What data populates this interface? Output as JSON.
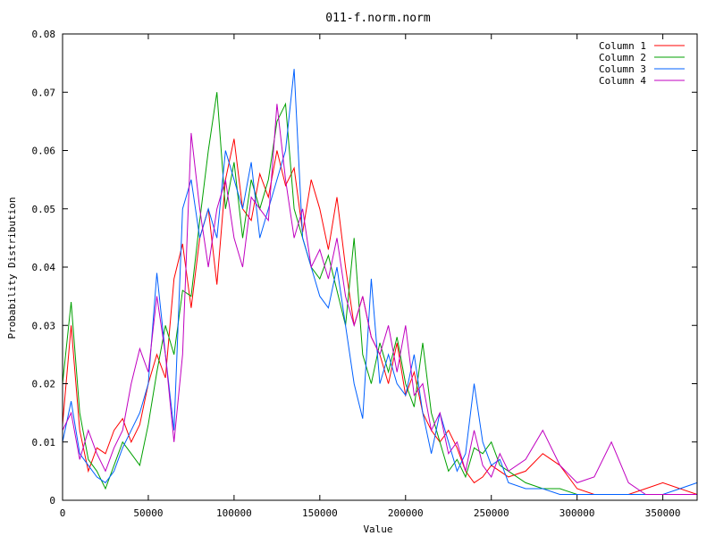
{
  "chart_data": {
    "type": "line",
    "title": "011-f.norm.norm",
    "xlabel": "Value",
    "ylabel": "Probability Distribution",
    "xlim": [
      0,
      370000
    ],
    "ylim": [
      0,
      0.08
    ],
    "xticks": [
      0,
      50000,
      100000,
      150000,
      200000,
      250000,
      300000,
      350000
    ],
    "yticks": [
      0,
      0.01,
      0.02,
      0.03,
      0.04,
      0.05,
      0.06,
      0.07,
      0.08
    ],
    "yticklabels": [
      "0",
      "0.01",
      "0.02",
      "0.03",
      "0.04",
      "0.05",
      "0.06",
      "0.07",
      "0.08"
    ],
    "grid": false,
    "legend_position": "top-right",
    "series": [
      {
        "name": "Column 1",
        "color": "#ff0000",
        "x": [
          0,
          5000,
          10000,
          15000,
          20000,
          25000,
          30000,
          35000,
          40000,
          45000,
          50000,
          55000,
          60000,
          65000,
          70000,
          75000,
          80000,
          85000,
          90000,
          95000,
          100000,
          105000,
          110000,
          115000,
          120000,
          125000,
          130000,
          135000,
          140000,
          145000,
          150000,
          155000,
          160000,
          165000,
          170000,
          175000,
          180000,
          185000,
          190000,
          195000,
          200000,
          205000,
          210000,
          215000,
          220000,
          225000,
          230000,
          235000,
          240000,
          245000,
          250000,
          255000,
          260000,
          270000,
          280000,
          290000,
          300000,
          310000,
          320000,
          330000,
          340000,
          350000,
          360000,
          370000
        ],
        "values": [
          0.013,
          0.03,
          0.012,
          0.005,
          0.009,
          0.008,
          0.012,
          0.014,
          0.01,
          0.013,
          0.02,
          0.025,
          0.021,
          0.038,
          0.044,
          0.033,
          0.045,
          0.05,
          0.037,
          0.055,
          0.062,
          0.05,
          0.048,
          0.056,
          0.052,
          0.06,
          0.054,
          0.057,
          0.046,
          0.055,
          0.05,
          0.043,
          0.052,
          0.04,
          0.03,
          0.035,
          0.028,
          0.025,
          0.02,
          0.027,
          0.018,
          0.022,
          0.015,
          0.012,
          0.01,
          0.012,
          0.009,
          0.005,
          0.003,
          0.004,
          0.006,
          0.005,
          0.004,
          0.005,
          0.008,
          0.006,
          0.002,
          0.001,
          0.001,
          0.001,
          0.002,
          0.003,
          0.002,
          0.001
        ]
      },
      {
        "name": "Column 2",
        "color": "#00a000",
        "x": [
          0,
          5000,
          10000,
          15000,
          20000,
          25000,
          30000,
          35000,
          40000,
          45000,
          50000,
          55000,
          60000,
          65000,
          70000,
          75000,
          80000,
          85000,
          90000,
          95000,
          100000,
          105000,
          110000,
          115000,
          120000,
          125000,
          130000,
          135000,
          140000,
          145000,
          150000,
          155000,
          160000,
          165000,
          170000,
          175000,
          180000,
          185000,
          190000,
          195000,
          200000,
          205000,
          210000,
          215000,
          220000,
          225000,
          230000,
          235000,
          240000,
          245000,
          250000,
          255000,
          260000,
          270000,
          280000,
          290000,
          300000,
          310000,
          320000,
          330000,
          340000,
          350000,
          360000,
          370000
        ],
        "values": [
          0.02,
          0.034,
          0.015,
          0.007,
          0.005,
          0.002,
          0.006,
          0.01,
          0.008,
          0.006,
          0.013,
          0.022,
          0.03,
          0.025,
          0.036,
          0.035,
          0.048,
          0.06,
          0.07,
          0.05,
          0.058,
          0.045,
          0.055,
          0.05,
          0.055,
          0.065,
          0.068,
          0.05,
          0.045,
          0.04,
          0.038,
          0.042,
          0.036,
          0.03,
          0.045,
          0.025,
          0.02,
          0.027,
          0.022,
          0.028,
          0.02,
          0.016,
          0.027,
          0.015,
          0.01,
          0.005,
          0.007,
          0.004,
          0.009,
          0.008,
          0.01,
          0.006,
          0.005,
          0.003,
          0.002,
          0.002,
          0.001,
          0.001,
          0.001,
          0.001,
          0.001,
          0.001,
          0.001,
          0.001
        ]
      },
      {
        "name": "Column 3",
        "color": "#0060ff",
        "x": [
          0,
          5000,
          10000,
          15000,
          20000,
          25000,
          30000,
          35000,
          40000,
          45000,
          50000,
          55000,
          60000,
          65000,
          70000,
          75000,
          80000,
          85000,
          90000,
          95000,
          100000,
          105000,
          110000,
          115000,
          120000,
          125000,
          130000,
          135000,
          140000,
          145000,
          150000,
          155000,
          160000,
          165000,
          170000,
          175000,
          180000,
          185000,
          190000,
          195000,
          200000,
          205000,
          210000,
          215000,
          220000,
          225000,
          230000,
          235000,
          240000,
          245000,
          250000,
          255000,
          260000,
          270000,
          280000,
          290000,
          300000,
          310000,
          320000,
          330000,
          340000,
          350000,
          360000,
          370000
        ],
        "values": [
          0.01,
          0.017,
          0.008,
          0.006,
          0.004,
          0.003,
          0.005,
          0.009,
          0.012,
          0.015,
          0.02,
          0.039,
          0.025,
          0.012,
          0.05,
          0.055,
          0.045,
          0.05,
          0.045,
          0.06,
          0.055,
          0.05,
          0.058,
          0.045,
          0.05,
          0.055,
          0.06,
          0.074,
          0.045,
          0.04,
          0.035,
          0.033,
          0.04,
          0.03,
          0.02,
          0.014,
          0.038,
          0.02,
          0.025,
          0.02,
          0.018,
          0.025,
          0.015,
          0.008,
          0.015,
          0.01,
          0.005,
          0.008,
          0.02,
          0.01,
          0.006,
          0.007,
          0.003,
          0.002,
          0.002,
          0.001,
          0.001,
          0.001,
          0.001,
          0.001,
          0.001,
          0.001,
          0.002,
          0.003
        ]
      },
      {
        "name": "Column 4",
        "color": "#c000c0",
        "x": [
          0,
          5000,
          10000,
          15000,
          20000,
          25000,
          30000,
          35000,
          40000,
          45000,
          50000,
          55000,
          60000,
          65000,
          70000,
          75000,
          80000,
          85000,
          90000,
          95000,
          100000,
          105000,
          110000,
          115000,
          120000,
          125000,
          130000,
          135000,
          140000,
          145000,
          150000,
          155000,
          160000,
          165000,
          170000,
          175000,
          180000,
          185000,
          190000,
          195000,
          200000,
          205000,
          210000,
          215000,
          220000,
          225000,
          230000,
          235000,
          240000,
          245000,
          250000,
          255000,
          260000,
          270000,
          280000,
          290000,
          300000,
          310000,
          320000,
          330000,
          340000,
          350000,
          360000,
          370000
        ],
        "values": [
          0.012,
          0.015,
          0.007,
          0.012,
          0.008,
          0.005,
          0.009,
          0.012,
          0.02,
          0.026,
          0.022,
          0.035,
          0.025,
          0.01,
          0.025,
          0.063,
          0.05,
          0.04,
          0.05,
          0.055,
          0.045,
          0.04,
          0.052,
          0.05,
          0.048,
          0.068,
          0.055,
          0.045,
          0.05,
          0.04,
          0.043,
          0.038,
          0.045,
          0.035,
          0.03,
          0.035,
          0.028,
          0.025,
          0.03,
          0.022,
          0.03,
          0.018,
          0.02,
          0.012,
          0.015,
          0.008,
          0.01,
          0.005,
          0.012,
          0.006,
          0.004,
          0.008,
          0.005,
          0.007,
          0.012,
          0.006,
          0.003,
          0.004,
          0.01,
          0.003,
          0.001,
          0.001,
          0.001,
          0.001
        ]
      }
    ]
  }
}
